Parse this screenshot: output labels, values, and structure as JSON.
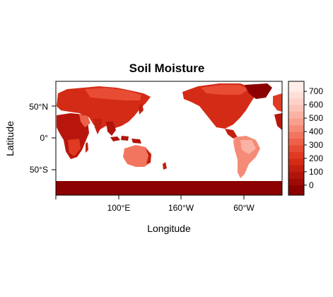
{
  "title": "Soil Moisture",
  "xlabel": "Longitude",
  "ylabel": "Latitude",
  "x_ticks": [
    "100°E",
    "160°W",
    "60°W"
  ],
  "y_ticks": [
    "50°N",
    "0°",
    "50°S"
  ],
  "colorbar": {
    "tick_labels": [
      "0",
      "100",
      "200",
      "300",
      "400",
      "500",
      "600",
      "700"
    ],
    "range": [
      -75,
      775
    ],
    "bands": [
      {
        "from": -75,
        "to": 0,
        "color": "#8b0000"
      },
      {
        "from": 0,
        "to": 50,
        "color": "#9e0a05"
      },
      {
        "from": 50,
        "to": 100,
        "color": "#b0140b"
      },
      {
        "from": 100,
        "to": 150,
        "color": "#c21f10"
      },
      {
        "from": 150,
        "to": 200,
        "color": "#d42b16"
      },
      {
        "from": 200,
        "to": 250,
        "color": "#e03a22"
      },
      {
        "from": 250,
        "to": 300,
        "color": "#e84c34"
      },
      {
        "from": 300,
        "to": 350,
        "color": "#ee6149"
      },
      {
        "from": 350,
        "to": 400,
        "color": "#f2765f"
      },
      {
        "from": 400,
        "to": 450,
        "color": "#f58b77"
      },
      {
        "from": 450,
        "to": 500,
        "color": "#f89f8e"
      },
      {
        "from": 500,
        "to": 550,
        "color": "#fab2a4"
      },
      {
        "from": 550,
        "to": 600,
        "color": "#fcc3b8"
      },
      {
        "from": 600,
        "to": 650,
        "color": "#fdd2ca"
      },
      {
        "from": 650,
        "to": 700,
        "color": "#fedfd8"
      },
      {
        "from": 700,
        "to": 775,
        "color": "#ffede8"
      }
    ]
  },
  "colors": {
    "antarctica": "#8b0000",
    "land_dark": "#c01a0f",
    "land_mid": "#e03a22",
    "land_light": "#f2765f",
    "land_pale": "#f9a898"
  }
}
